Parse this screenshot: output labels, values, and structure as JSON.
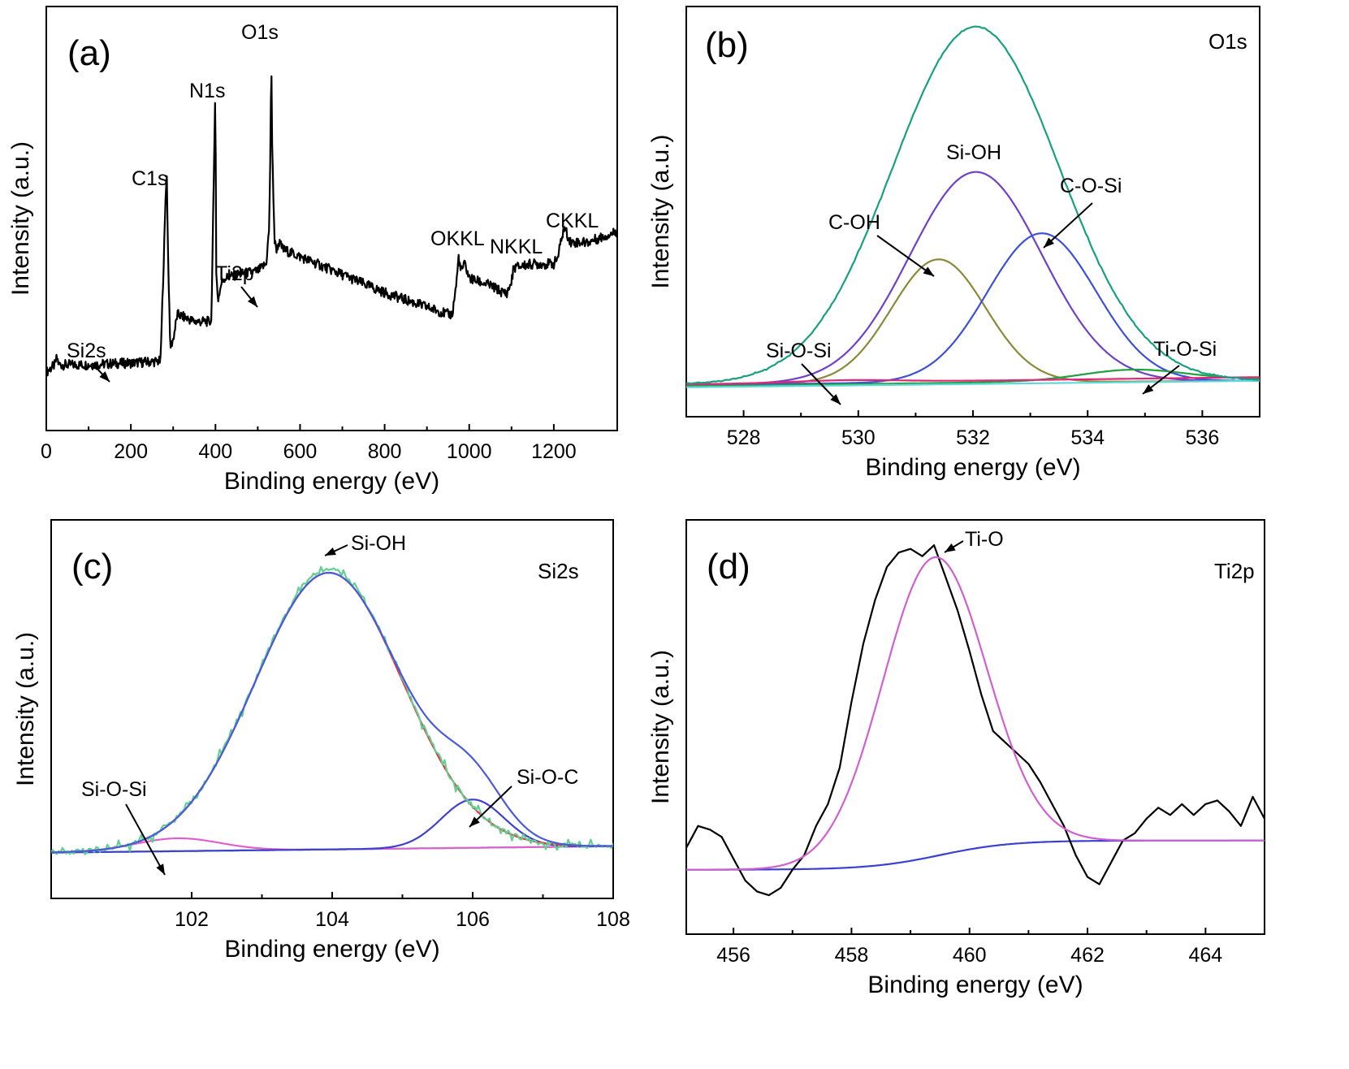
{
  "chart_data": [
    {
      "type": "line",
      "panel_label": "(a)",
      "region_label": "",
      "xlabel": "Binding energy (eV)",
      "ylabel": "Intensity (a.u.)",
      "xlim": [
        0,
        1350
      ],
      "ylim": [
        0,
        100
      ],
      "xticks": [
        0,
        200,
        400,
        600,
        800,
        1000,
        1200
      ],
      "series": [
        {
          "color": "#000000",
          "noise": 1.4,
          "x": [
            0,
            10,
            20,
            25,
            30,
            40,
            100,
            150,
            200,
            270,
            278,
            283,
            285,
            288,
            293,
            300,
            310,
            350,
            390,
            396,
            399,
            400,
            402,
            406,
            415,
            420,
            450,
            500,
            520,
            527,
            530,
            532,
            534,
            540,
            545,
            550,
            560,
            600,
            700,
            800,
            900,
            950,
            960,
            970,
            975,
            980,
            990,
            1000,
            1050,
            1080,
            1090,
            1100,
            1105,
            1150,
            1200,
            1210,
            1220,
            1225,
            1240,
            1280,
            1350
          ],
          "y": [
            8,
            9,
            10,
            12,
            10,
            10,
            10,
            10.3,
            10.5,
            11,
            40,
            60,
            62,
            40,
            15,
            17,
            24,
            22,
            22,
            60,
            84,
            80,
            35,
            28,
            33,
            34,
            35,
            36,
            38,
            48,
            70,
            97,
            70,
            44,
            42,
            44,
            42,
            40,
            35,
            30,
            26,
            24,
            24,
            33,
            40,
            36,
            38,
            34,
            32,
            30,
            30,
            33,
            37,
            38,
            38,
            40,
            46,
            48,
            44,
            44,
            47
          ]
        }
      ],
      "peaks": [
        {
          "label": "Si2s",
          "x": 150,
          "y": 11
        },
        {
          "label": "C1s",
          "x": 285,
          "y": 62
        },
        {
          "label": "N1s",
          "x": 400,
          "y": 84
        },
        {
          "label": "Ti2p",
          "x": 495,
          "y": 35
        },
        {
          "label": "O1s",
          "x": 532,
          "y": 97
        },
        {
          "label": "OKKL",
          "x": 978,
          "y": 40
        },
        {
          "label": "NKKL",
          "x": 1100,
          "y": 37
        },
        {
          "label": "CKKL",
          "x": 1230,
          "y": 48
        }
      ]
    },
    {
      "type": "line",
      "panel_label": "(b)",
      "region_label": "O1s",
      "xlabel": "Binding energy (eV)",
      "ylabel": "Intensity (a.u.)",
      "xlim": [
        527,
        537
      ],
      "ylim": [
        0,
        100
      ],
      "xticks": [
        528,
        530,
        532,
        534,
        536
      ],
      "series": [
        {
          "name": "C-OH",
          "color": "#8a8a3a",
          "center": 531.4,
          "height": 34,
          "sigma": 0.82,
          "base": [
            1,
            2
          ]
        },
        {
          "name": "Si-OH",
          "color": "#7040c8",
          "center": 532.05,
          "height": 58,
          "sigma": 1.15,
          "base": [
            1,
            2
          ]
        },
        {
          "name": "C-O-Si",
          "color": "#3c50d8",
          "center": 533.2,
          "height": 41,
          "sigma": 0.95,
          "base": [
            1,
            2
          ]
        },
        {
          "name": "Ti-O-Si",
          "color": "#20a040",
          "center": 534.8,
          "height": 3,
          "sigma": 0.9,
          "base": [
            0.5,
            2.5
          ]
        },
        {
          "name": "Si-O-Si",
          "color": "#e0287a",
          "center": 529.8,
          "height": 0.6,
          "sigma": 0.9,
          "base": [
            1,
            3
          ]
        },
        {
          "name": "",
          "color": "#60d8d8",
          "center": 535,
          "height": 0,
          "sigma": 1,
          "base": [
            0.2,
            2
          ]
        },
        {
          "name": "",
          "color": "#18a080",
          "center": 532.05,
          "height": 98,
          "sigma": 1.45,
          "base": [
            1,
            2
          ],
          "noise": 0.3
        }
      ],
      "peaks": [
        {
          "label": "Si-OH",
          "x": 532.05,
          "y": 61
        },
        {
          "label": "C-O-Si",
          "x": 533.2,
          "y": 42
        },
        {
          "label": "C-OH",
          "x": 531.4,
          "y": 35
        },
        {
          "label": "Ti-O-Si",
          "x": 534.8,
          "y": 5
        },
        {
          "label": "Si-O-Si",
          "x": 529.8,
          "y": 2
        }
      ]
    },
    {
      "type": "line",
      "panel_label": "(c)",
      "region_label": "Si2s",
      "xlabel": "Binding energy (eV)",
      "ylabel": "Intensity (a.u.)",
      "xlim": [
        100,
        108
      ],
      "ylim": [
        0,
        100
      ],
      "xticks": [
        102,
        104,
        106,
        108
      ],
      "series": [
        {
          "name": "",
          "color": "#30d030",
          "center": 104,
          "height": 0,
          "sigma": 1,
          "base": [
            6,
            8
          ]
        },
        {
          "name": "Si-O-Si",
          "color": "#e060d0",
          "center": 101.8,
          "height": 4,
          "sigma": 0.6,
          "base": [
            6,
            8
          ]
        },
        {
          "name": "Si-O-C",
          "color": "#4040d0",
          "center": 106,
          "height": 15,
          "sigma": 0.45,
          "base": [
            6,
            8
          ]
        },
        {
          "name": "Si-OH",
          "color": "#f03040",
          "center": 103.95,
          "height": 86,
          "sigma": 1.05,
          "base": [
            6,
            8
          ]
        },
        {
          "name": "",
          "color": "#60d090",
          "center": 103.95,
          "height": 87,
          "sigma": 1.05,
          "base": [
            6,
            8
          ],
          "noise": 2.2
        },
        {
          "name": "",
          "color": "#4a5ad8",
          "center": 103.95,
          "height": 86,
          "sigma": 1.05,
          "base": [
            6,
            8
          ],
          "extra": [
            106,
            15,
            0.45
          ]
        }
      ],
      "peaks": [
        {
          "label": "Si-OH",
          "x": 103.95,
          "y": 92
        },
        {
          "label": "Si-O-C",
          "x": 106,
          "y": 22
        },
        {
          "label": "Si-O-Si",
          "x": 101.8,
          "y": 10
        }
      ]
    },
    {
      "type": "line",
      "panel_label": "(d)",
      "region_label": "Ti2p",
      "xlabel": "Binding energy (eV)",
      "ylabel": "Intensity (a.u.)",
      "xlim": [
        455.2,
        465
      ],
      "ylim": [
        0,
        100
      ],
      "xticks": [
        456,
        458,
        460,
        462,
        464
      ],
      "series": [
        {
          "name": "",
          "color": "#3a40d0",
          "center": 459.4,
          "height": 0,
          "sigma": 1,
          "step": [
            459.5,
            12,
            20
          ]
        },
        {
          "name": "",
          "color": "#000000",
          "x": [
            455.2,
            455.4,
            455.6,
            455.8,
            456.0,
            456.2,
            456.4,
            456.6,
            456.8,
            457.0,
            457.2,
            457.4,
            457.6,
            457.8,
            458.0,
            458.2,
            458.4,
            458.6,
            458.8,
            459.0,
            459.2,
            459.4,
            459.6,
            459.8,
            460.0,
            460.2,
            460.4,
            460.6,
            460.8,
            461.0,
            461.2,
            461.4,
            461.6,
            461.8,
            462.0,
            462.2,
            462.4,
            462.6,
            462.8,
            463.0,
            463.2,
            463.4,
            463.6,
            463.8,
            464.0,
            464.2,
            464.4,
            464.6,
            464.8,
            465.0
          ],
          "y": [
            18,
            24,
            23,
            21,
            15,
            9,
            6,
            5,
            7,
            12,
            16,
            24,
            30,
            40,
            58,
            74,
            86,
            95,
            99,
            100,
            98,
            101,
            92,
            83,
            72,
            60,
            50,
            47,
            44,
            41,
            36,
            30,
            24,
            16,
            10,
            8,
            14,
            20,
            22,
            26,
            29,
            27,
            30,
            27,
            30,
            31,
            28,
            24,
            32,
            26
          ]
        },
        {
          "name": "",
          "color": "#d060d0",
          "center": 459.4,
          "height": 82,
          "sigma": 0.88,
          "step": [
            459.5,
            12,
            20
          ]
        }
      ],
      "peaks": [
        {
          "label": "Ti-O",
          "x": 459.4,
          "y": 101
        }
      ]
    }
  ]
}
